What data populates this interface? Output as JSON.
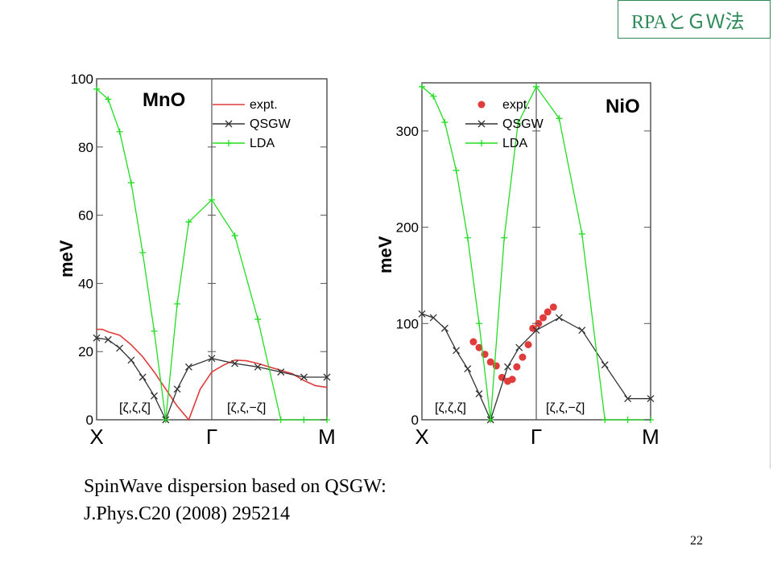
{
  "header": {
    "title": "RPAとＧＷ法"
  },
  "caption": {
    "line1": "SpinWave dispersion based on QSGW:",
    "line2": "J.Phys.C20 (2008) 295214"
  },
  "page_number": "22",
  "colors": {
    "expt": "#e03c3c",
    "qsgw": "#333333",
    "lda": "#22dd22",
    "header": "#2e8b57"
  },
  "chart_data": [
    {
      "type": "line",
      "title": "MnO",
      "ylabel": "meV",
      "ylim": [
        0,
        100
      ],
      "yticks": [
        "0",
        "20",
        "40",
        "60",
        "80",
        "100"
      ],
      "xticklabels": [
        "X",
        "Γ",
        "M"
      ],
      "direction_labels": [
        "[ζ,ζ,ζ]",
        "[ζ,ζ,−ζ]"
      ],
      "legend_position": "top-right",
      "series": [
        {
          "name": "expt.",
          "style": "line",
          "x": [
            0,
            0.05,
            0.1,
            0.2,
            0.3,
            0.4,
            0.5,
            0.6,
            0.7,
            0.8,
            0.9,
            1.0,
            1.1,
            1.2,
            1.3,
            1.4,
            1.5,
            1.6,
            1.7,
            1.8,
            1.9,
            2.0
          ],
          "y": [
            26.5,
            26.5,
            25.8,
            24.8,
            22,
            18.5,
            14,
            9,
            4,
            0,
            9,
            14,
            16,
            17.5,
            17.3,
            16.5,
            15.5,
            14.5,
            13.5,
            11.5,
            10,
            9.5
          ]
        },
        {
          "name": "QSGW",
          "style": "cross",
          "x": [
            0,
            0.1,
            0.2,
            0.3,
            0.4,
            0.5,
            0.6,
            0.7,
            0.8,
            1.0,
            1.2,
            1.4,
            1.6,
            1.8,
            2.0
          ],
          "y": [
            24,
            23.5,
            21,
            17.5,
            12.5,
            7,
            0,
            9,
            15.5,
            18,
            16.5,
            15.5,
            14,
            12.5,
            12.5
          ]
        },
        {
          "name": "LDA",
          "style": "plus",
          "x": [
            0,
            0.1,
            0.2,
            0.3,
            0.4,
            0.5,
            0.6,
            0.7,
            0.8,
            1.0,
            1.2,
            1.4,
            1.6,
            1.8,
            2.0
          ],
          "y": [
            97,
            94,
            84.5,
            69.5,
            49,
            26,
            0,
            34,
            58,
            64.5,
            54,
            29.5,
            0,
            0,
            0
          ]
        }
      ]
    },
    {
      "type": "line",
      "title": "NiO",
      "ylabel": "meV",
      "ylim": [
        0,
        350
      ],
      "yticks": [
        "0",
        "100",
        "200",
        "300"
      ],
      "xticklabels": [
        "X",
        "Γ",
        "M"
      ],
      "direction_labels": [
        "[ζ,ζ,ζ]",
        "[ζ,ζ,−ζ]"
      ],
      "legend_position": "top-left",
      "series": [
        {
          "name": "expt.",
          "style": "dots",
          "x": [
            0.45,
            0.5,
            0.55,
            0.6,
            0.65,
            0.7,
            0.75,
            0.79,
            0.83,
            0.88,
            0.93,
            0.97,
            1.02,
            1.06,
            1.1,
            1.15
          ],
          "y": [
            81,
            75,
            68,
            60,
            56,
            44,
            40,
            42,
            55,
            65,
            78,
            95,
            100,
            106,
            112,
            117
          ]
        },
        {
          "name": "QSGW",
          "style": "cross",
          "x": [
            0,
            0.1,
            0.2,
            0.3,
            0.4,
            0.5,
            0.6,
            0.75,
            0.85,
            1.0,
            1.2,
            1.4,
            1.6,
            1.8,
            2.0
          ],
          "y": [
            110,
            106,
            95,
            72,
            53,
            27,
            0,
            55,
            75,
            93,
            106,
            93,
            57,
            22,
            22
          ]
        },
        {
          "name": "LDA",
          "style": "plus",
          "x": [
            0,
            0.1,
            0.2,
            0.3,
            0.4,
            0.5,
            0.6,
            0.72,
            0.84,
            1.0,
            1.2,
            1.4,
            1.6,
            1.8,
            2.0
          ],
          "y": [
            346,
            336,
            309,
            259,
            189,
            100,
            0,
            189,
            308,
            346,
            313,
            193,
            0,
            0,
            0
          ]
        }
      ]
    }
  ]
}
